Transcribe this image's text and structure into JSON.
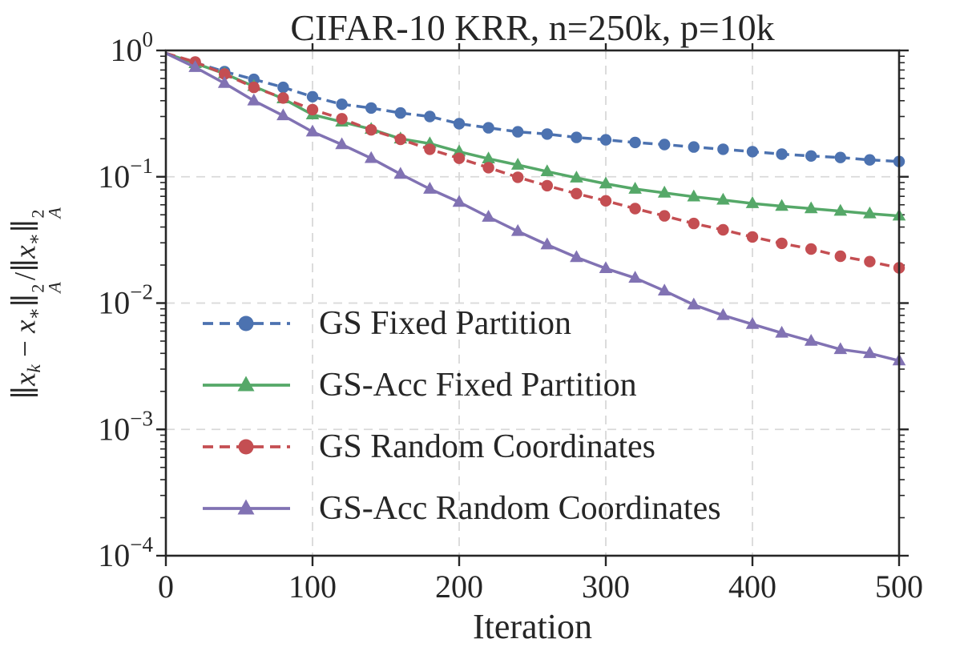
{
  "figure": {
    "title": "CIFAR-10 KRR, n=250k, p=10k",
    "background": "#ffffff",
    "text_color": "#262626",
    "spine_color": "#262626",
    "grid_color": "#d9d9d9"
  },
  "axes": {
    "xlabel": "Iteration",
    "ylabel_plain": "||x_k − x_*||^2_A / ||x_*||^2_A",
    "ylabel_segments": [
      {
        "t": "∥"
      },
      {
        "t": "x",
        "i": 1
      },
      {
        "s": "k",
        "i": 1
      },
      {
        "t": " − "
      },
      {
        "t": "x",
        "i": 1
      },
      {
        "s": "∗"
      },
      {
        "t": "∥"
      },
      {
        "ss": [
          "2",
          "A"
        ]
      },
      {
        "t": "/"
      },
      {
        "t": "∥"
      },
      {
        "t": "x",
        "i": 1
      },
      {
        "s": "∗"
      },
      {
        "t": "∥"
      },
      {
        "ss": [
          "2",
          "A"
        ]
      }
    ],
    "x_ticks": [
      0,
      100,
      200,
      300,
      400,
      500
    ],
    "y_tick_base": "10",
    "y_tick_exponents": [
      0,
      -1,
      -2,
      -3,
      -4
    ],
    "x_range": [
      0,
      500
    ],
    "y_scale": "log",
    "y_range": [
      0.0001,
      1.0
    ],
    "grid": "major, dashed, both directions"
  },
  "chart_data": {
    "type": "line",
    "title": "CIFAR-10 KRR, n=250k, p=10k",
    "xlabel": "Iteration",
    "ylabel": "||x_k − x_*||^2_A / ||x_*||^2_A",
    "xlim": [
      0,
      500
    ],
    "ylim": [
      0.0001,
      1.0
    ],
    "y_scale": "log",
    "grid": true,
    "legend_position": "lower-left inside axes, no frame",
    "x": [
      0,
      20,
      40,
      60,
      80,
      100,
      120,
      140,
      160,
      180,
      200,
      220,
      240,
      260,
      280,
      300,
      320,
      340,
      360,
      380,
      400,
      420,
      440,
      460,
      480,
      500
    ],
    "series": [
      {
        "name": "GS Fixed Partition",
        "color": "#4C72B0",
        "line_style": "dashed",
        "marker": "circle",
        "values": [
          0.95,
          0.8,
          0.68,
          0.59,
          0.51,
          0.43,
          0.375,
          0.35,
          0.32,
          0.3,
          0.263,
          0.244,
          0.227,
          0.218,
          0.205,
          0.196,
          0.187,
          0.18,
          0.172,
          0.165,
          0.158,
          0.151,
          0.146,
          0.142,
          0.136,
          0.132
        ]
      },
      {
        "name": "GS-Acc Fixed Partition",
        "color": "#55A868",
        "line_style": "solid",
        "marker": "triangle",
        "values": [
          0.95,
          0.79,
          0.655,
          0.52,
          0.415,
          0.31,
          0.272,
          0.238,
          0.2,
          0.183,
          0.158,
          0.139,
          0.124,
          0.11,
          0.098,
          0.088,
          0.08,
          0.0745,
          0.0695,
          0.0655,
          0.0615,
          0.0585,
          0.056,
          0.0535,
          0.051,
          0.049
        ]
      },
      {
        "name": "GS Random Coordinates",
        "color": "#C44E52",
        "line_style": "dashed",
        "marker": "circle",
        "values": [
          0.95,
          0.81,
          0.65,
          0.51,
          0.42,
          0.34,
          0.288,
          0.235,
          0.198,
          0.165,
          0.14,
          0.118,
          0.099,
          0.085,
          0.0735,
          0.0645,
          0.056,
          0.049,
          0.0427,
          0.038,
          0.0334,
          0.0297,
          0.0268,
          0.0235,
          0.0213,
          0.019
        ]
      },
      {
        "name": "GS-Acc Random Coordinates",
        "color": "#8172B3",
        "line_style": "solid",
        "marker": "triangle",
        "values": [
          0.95,
          0.735,
          0.55,
          0.4,
          0.305,
          0.227,
          0.18,
          0.14,
          0.105,
          0.08,
          0.063,
          0.048,
          0.037,
          0.029,
          0.023,
          0.0188,
          0.0158,
          0.0125,
          0.0097,
          0.008,
          0.0068,
          0.0058,
          0.005,
          0.0043,
          0.004,
          0.0035
        ]
      }
    ]
  }
}
